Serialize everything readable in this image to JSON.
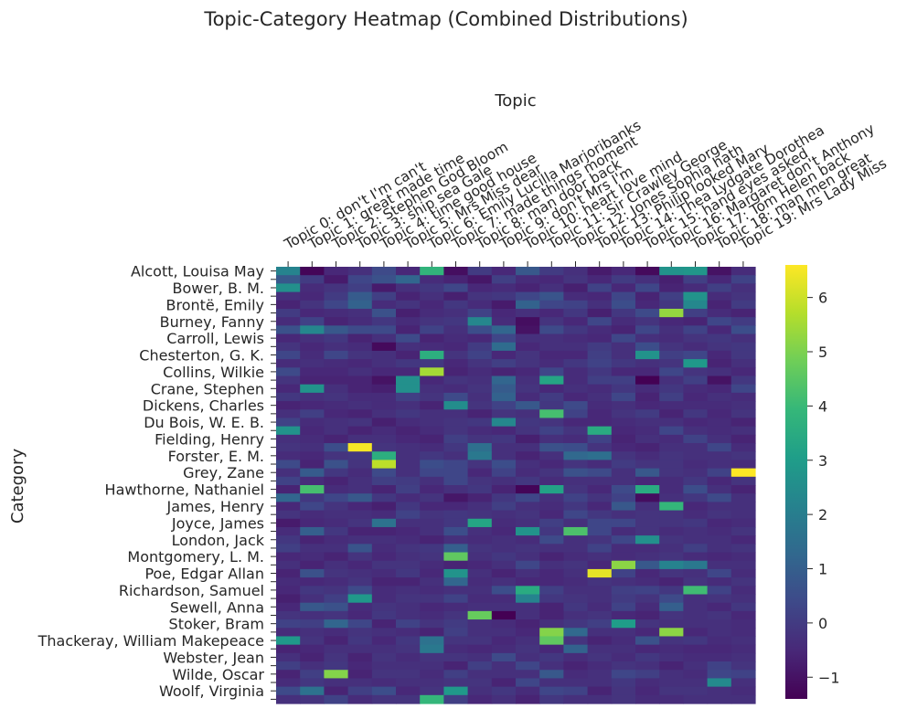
{
  "chart_data": {
    "type": "heatmap",
    "title": "Topic-Category Heatmap (Combined Distributions)",
    "xlabel": "Topic",
    "ylabel": "Category",
    "x_categories": [
      "Topic 0: don't I'm can't",
      "Topic 1: great made time",
      "Topic 2: Stephen God Bloom",
      "Topic 3: ship sea Gale",
      "Topic 4: time good house",
      "Topic 5: Mrs Miss dear",
      "Topic 6: Emily Lucilla Marjoribanks",
      "Topic 7: made things moment",
      "Topic 8: man door back",
      "Topic 9: don't Mrs I'm",
      "Topic 10: heart love mind",
      "Topic 11: Sir Crawley George",
      "Topic 12: Jones Sophia hath",
      "Topic 13: Philip looked Mary",
      "Topic 14: Thea Lydgate Dorothea",
      "Topic 15: hand eyes asked",
      "Topic 16: Margaret don't Anthony",
      "Topic 17: Tom Helen back",
      "Topic 18: man men great",
      "Topic 19: Mrs Lady Miss"
    ],
    "y_tick_labels": [
      "Alcott, Louisa May",
      "Bower, B. M.",
      "Brontë, Emily",
      "Burney, Fanny",
      "Carroll, Lewis",
      "Chesterton, G. K.",
      "Collins, Wilkie",
      "Crane, Stephen",
      "Dickens, Charles",
      "Du Bois, W. E. B.",
      "Fielding, Henry",
      "Forster, E. M.",
      "Grey, Zane",
      "Hawthorne, Nathaniel",
      "James, Henry",
      "Joyce, James",
      "London, Jack",
      "Montgomery, L. M.",
      "Poe, Edgar Allan",
      "Richardson, Samuel",
      "Sewell, Anna",
      "Stoker, Bram",
      "Thackeray, William Makepeace",
      "Webster, Jean",
      "Wilde, Oscar",
      "Woolf, Virginia"
    ],
    "n_rows": 52,
    "row_label_every": 2,
    "colormap": "viridis",
    "colorbar_ticks": [
      -1,
      0,
      1,
      2,
      3,
      4,
      5,
      6
    ],
    "value_range": [
      -1.4,
      6.6
    ],
    "values": [
      [
        2.2,
        -1.3,
        -0.5,
        -0.3,
        0.4,
        -0.5,
        3.8,
        -1.1,
        0,
        -0.5,
        0.8,
        0,
        -0.3,
        -0.8,
        -0.5,
        -1.2,
        2.7,
        2.8,
        -1,
        -0.4
      ],
      [
        0.8,
        0,
        -0.8,
        0.3,
        0.6,
        1.2,
        -0.4,
        -0.6,
        -0.9,
        0.1,
        -0.4,
        -0.5,
        -0.2,
        -0.5,
        0,
        -0.3,
        -0.7,
        0.1,
        -0.5,
        0.2
      ],
      [
        2.6,
        -0.4,
        -0.2,
        0.1,
        -0.8,
        -0.3,
        -0.1,
        0.3,
        -0.5,
        -0.4,
        -0.6,
        -0.3,
        -0.7,
        0.2,
        -0.5,
        0.3,
        -0.6,
        -0.4,
        0.1,
        -0.3
      ],
      [
        -0.3,
        -0.5,
        0,
        0.9,
        0.1,
        -0.6,
        -0.3,
        -0.7,
        -0.2,
        -0.1,
        0.3,
        0.7,
        -0.4,
        -0.5,
        0.3,
        -0.6,
        0.1,
        2.7,
        -0.4,
        -0.2
      ],
      [
        -0.6,
        -0.2,
        0.3,
        1.1,
        -0.4,
        -0.2,
        -0.5,
        -0.1,
        -0.4,
        -0.8,
        1.1,
        0.3,
        0.2,
        -0.3,
        0.5,
        -0.5,
        -0.1,
        2.3,
        -0.6,
        0
      ],
      [
        0,
        -0.5,
        -0.4,
        -0.3,
        0.6,
        -0.7,
        -0.4,
        -0.3,
        0.2,
        -0.5,
        -0.3,
        -0.5,
        -0.1,
        -0.7,
        -0.1,
        0.4,
        5.3,
        0.1,
        -0.4,
        -0.6
      ],
      [
        -0.4,
        0.2,
        -0.6,
        -0.4,
        -0.1,
        -0.4,
        -0.2,
        -0.1,
        2.3,
        -0.4,
        -1.1,
        -0.2,
        -0.5,
        0.3,
        -0.4,
        -0.2,
        -0.5,
        -0.6,
        0.3,
        0
      ],
      [
        0.6,
        2.3,
        0.8,
        0.4,
        0.4,
        -0.6,
        0.2,
        -0.3,
        0.5,
        1.2,
        -1,
        0.4,
        -0.1,
        -0.4,
        -0.6,
        0.3,
        -0.3,
        0.2,
        -0.5,
        0.5
      ],
      [
        -0.5,
        -0.3,
        -0.1,
        -0.6,
        -0.3,
        0.4,
        -0.6,
        -0.4,
        -0.5,
        0.3,
        -0.3,
        -0.3,
        -0.4,
        -0.5,
        0.3,
        -0.3,
        -0.4,
        -0.2,
        -0.1,
        -0.3
      ],
      [
        -0.2,
        -0.5,
        -0.3,
        -0.4,
        -1.2,
        -0.3,
        -0.4,
        -0.5,
        0,
        1.4,
        -0.5,
        -0.3,
        -0.3,
        0,
        -0.3,
        0.5,
        -0.2,
        -0.4,
        -0.2,
        -0.1
      ],
      [
        0.3,
        -0.4,
        0.3,
        -0.2,
        -0.3,
        -0.6,
        3.6,
        -0.2,
        0.2,
        -0.5,
        -0.2,
        -0.5,
        -0.5,
        0.1,
        -0.3,
        2.7,
        0.1,
        0.3,
        -0.5,
        -0.1
      ],
      [
        -0.4,
        -0.3,
        -0.4,
        -0.5,
        -0.3,
        -0.1,
        -0.1,
        -0.5,
        -0.2,
        0.1,
        -0.2,
        -0.4,
        -0.1,
        0.2,
        -0.1,
        -0.3,
        -0.2,
        2.9,
        -0.6,
        -0.3
      ],
      [
        0.4,
        -0.5,
        -0.5,
        -0.3,
        -0.5,
        -0.5,
        5.5,
        -0.6,
        -0.4,
        -0.6,
        -0.5,
        0.3,
        -0.4,
        -0.1,
        -0.5,
        -0.5,
        0.3,
        -0.2,
        -0.3,
        -0.5
      ],
      [
        -0.2,
        -0.6,
        -0.6,
        -0.6,
        -1,
        2.6,
        -0.5,
        -0.2,
        -0.3,
        1.2,
        -0.3,
        3.3,
        -0.4,
        0.1,
        0.1,
        -1.4,
        -0.3,
        0.1,
        -1,
        -0.1
      ],
      [
        -0.5,
        2.7,
        -0.3,
        -0.6,
        -0.7,
        2.6,
        -0.3,
        -0.4,
        -0.2,
        0.9,
        -0.2,
        -0.5,
        -0.3,
        -0.4,
        -0.1,
        -0.4,
        -0.1,
        -0.4,
        -0.5,
        0.3
      ],
      [
        -0.1,
        -0.3,
        -0.2,
        -0.4,
        -0.4,
        0.1,
        -0.2,
        0.4,
        -0.3,
        1.1,
        -0.4,
        0,
        -0.5,
        -0.3,
        0.3,
        -0.6,
        0.1,
        -0.5,
        -0.3,
        -0.4
      ],
      [
        -0.6,
        -0.5,
        -0.4,
        -0.3,
        -0.4,
        -0.3,
        -0.6,
        2.5,
        -0.2,
        0.2,
        0.8,
        -0.1,
        0.4,
        -0.4,
        -0.3,
        -0.5,
        -0.4,
        -0.4,
        -0.4,
        -0.3
      ],
      [
        -0.3,
        0.1,
        -0.5,
        -0.6,
        -0.3,
        -0.1,
        -0.3,
        -0.3,
        -0.6,
        -0.2,
        -0.3,
        4.2,
        0.2,
        -0.5,
        -0.2,
        0,
        -0.6,
        -0.1,
        -0.5,
        -0.2
      ],
      [
        0.2,
        -0.4,
        -0.3,
        -0.2,
        -0.7,
        -0.4,
        -0.3,
        -0.2,
        -0.1,
        2.3,
        -0.1,
        -0.2,
        -0.5,
        -0.5,
        -0.4,
        -0.3,
        -0.3,
        -0.5,
        -0.4,
        -0.6
      ],
      [
        2.7,
        -0.5,
        -0.3,
        -0.6,
        -0.4,
        -0.6,
        -0.4,
        -0.2,
        -0.4,
        -0.5,
        -0.2,
        0.2,
        -0.2,
        3.5,
        -0.5,
        -0.4,
        0.3,
        -0.3,
        -0.4,
        -0.3
      ],
      [
        -0.3,
        -0.4,
        -0.6,
        -0.3,
        -0.3,
        -0.5,
        -0.6,
        0.1,
        -0.2,
        -0.1,
        -0.7,
        -0.3,
        -0.4,
        0.2,
        -0.6,
        -0.3,
        -0.4,
        0.2,
        -0.3,
        -0.6
      ],
      [
        -0.2,
        -0.3,
        0.5,
        6.5,
        -0.2,
        -0.3,
        -0.4,
        -0.1,
        1.5,
        -0.3,
        -0.3,
        0.6,
        0.5,
        -0.2,
        -0.5,
        -0.6,
        -0.3,
        -0.3,
        0.3,
        -0.4
      ],
      [
        -0.4,
        -0.5,
        -0.2,
        -0.1,
        3.6,
        -0.3,
        -0.1,
        -0.3,
        1.8,
        -0.3,
        -0.6,
        -0.3,
        1.3,
        1.5,
        -0.2,
        -0.4,
        -0.2,
        -0.3,
        -0.3,
        -0.2
      ],
      [
        0.4,
        -0.6,
        0.6,
        -0.2,
        5.8,
        -0.3,
        0.5,
        0.3,
        -0.2,
        0.5,
        -0.3,
        -0.5,
        -0.2,
        -0.4,
        0,
        -0.2,
        -0.2,
        -0.4,
        -0.3,
        -0.4
      ],
      [
        -0.3,
        0.9,
        -0.1,
        -0.4,
        0.4,
        -0.3,
        0.3,
        0.3,
        -0.5,
        0.2,
        -0.4,
        -0.2,
        0.6,
        0.4,
        -0.3,
        0.8,
        -0.2,
        -0.3,
        0.2,
        6.6
      ],
      [
        0.2,
        -0.4,
        -0.6,
        -0.3,
        0.1,
        0,
        -0.3,
        0.3,
        -0.2,
        -0.3,
        -0.1,
        -0.4,
        -0.3,
        -0.3,
        -0.3,
        -0.5,
        -0.4,
        -0.1,
        -0.5,
        -0.2
      ],
      [
        -0.6,
        4.2,
        -0.4,
        -0.3,
        -0.6,
        0.1,
        -0.5,
        -0.3,
        -0.1,
        -0.6,
        -1.3,
        3.2,
        -0.2,
        -0.5,
        0.4,
        3.5,
        -0.4,
        0.5,
        -0.3,
        -0.6
      ],
      [
        1.2,
        -0.1,
        0.3,
        0.8,
        -0.1,
        -0.4,
        -0.2,
        -0.9,
        -0.6,
        -0.1,
        0.3,
        -0.3,
        0.2,
        -0.2,
        0.2,
        -1.1,
        -0.3,
        -0.1,
        0.4,
        -0.3
      ],
      [
        -0.5,
        0.3,
        -0.2,
        -0.5,
        -0.7,
        -0.1,
        -0.5,
        -0.5,
        -0.3,
        0.1,
        -0.3,
        -0.4,
        -0.1,
        -0.5,
        0.8,
        -0.3,
        3.9,
        -0.5,
        -0.3,
        -0.3
      ],
      [
        -0.2,
        -0.4,
        -0.3,
        -0.3,
        -0.4,
        0.2,
        -0.2,
        -0.1,
        -0.2,
        -0.3,
        -0.2,
        -0.5,
        0.3,
        -0.1,
        -0.3,
        -0.2,
        -0.2,
        -0.4,
        -0.2,
        -0.3
      ],
      [
        -0.8,
        -0.5,
        -0.4,
        -0.2,
        1.6,
        -0.3,
        -0.3,
        -0.1,
        3.3,
        -0.4,
        -0.3,
        0.1,
        -0.3,
        0.3,
        0.3,
        -0.2,
        -0.2,
        -0.1,
        -0.5,
        -0.4
      ],
      [
        -0.4,
        1,
        -0.1,
        -0.6,
        -0.6,
        -0.5,
        -0.3,
        0.5,
        -0.3,
        -0.5,
        2.7,
        -0.1,
        4.3,
        0.3,
        -0.4,
        -0.2,
        -0.4,
        -0.3,
        -0.4,
        -0.2
      ],
      [
        -0.1,
        -0.6,
        -0.4,
        -0.3,
        -0.3,
        -0.4,
        -0.6,
        -0.3,
        -0.4,
        -0.3,
        -0.4,
        0.4,
        -0.3,
        -0.2,
        0.3,
        2.6,
        -0.2,
        -0.3,
        -0.3,
        -0.5
      ],
      [
        0.1,
        -0.3,
        -0.3,
        0.7,
        -0.4,
        -0.2,
        -0.1,
        1,
        -0.2,
        -0.3,
        -0.2,
        -0.3,
        -0.3,
        0.2,
        -0.4,
        -0.4,
        -0.3,
        0.1,
        -0.3,
        -0.2
      ],
      [
        -0.5,
        -0.4,
        -0.6,
        -0.2,
        -0.5,
        -0.3,
        -0.2,
        4.6,
        -0.3,
        -0.1,
        -0.3,
        -0.6,
        -0.4,
        -0.3,
        -0.4,
        -0.3,
        -0.2,
        -0.4,
        -0.5,
        -0.4
      ],
      [
        -0.3,
        -0.6,
        -0.3,
        -0.5,
        -0.2,
        -0.2,
        -0.4,
        -0.6,
        -0.5,
        -0.3,
        0.3,
        -0.3,
        -0.2,
        -0.5,
        5.2,
        0.8,
        2.2,
        1.8,
        -0.3,
        -0.3
      ],
      [
        -0.6,
        0.6,
        -0.2,
        -0.3,
        -0.4,
        -0.1,
        -0.5,
        2.7,
        -0.3,
        -0.6,
        -0.3,
        -0.5,
        -0.3,
        6.3,
        0.2,
        -0.5,
        -0.2,
        -0.3,
        0.3,
        -0.4
      ],
      [
        -0.4,
        -0.5,
        -0.4,
        -0.2,
        -0.6,
        -0.6,
        -0.3,
        1.2,
        -0.4,
        -0.3,
        -0.5,
        -0.5,
        -0.4,
        -0.2,
        -0.3,
        -0.4,
        -0.6,
        -0.2,
        -0.4,
        -0.2
      ],
      [
        -0.5,
        -0.1,
        -0.2,
        0.4,
        -0.4,
        -0.3,
        -0.4,
        -0.3,
        -0.3,
        0.5,
        3.5,
        0.1,
        -0.3,
        -0.3,
        0.1,
        0.2,
        -0.1,
        4.1,
        0.2,
        -0.4
      ],
      [
        -0.7,
        -0.3,
        0.1,
        2.9,
        -0.4,
        -0.2,
        -0.2,
        0.2,
        -0.4,
        -0.4,
        2.2,
        -0.1,
        -0.2,
        -0.3,
        0,
        -0.2,
        0.4,
        -0.3,
        -0.2,
        -0.3
      ],
      [
        -0.5,
        0.8,
        0.6,
        -0.4,
        -0.2,
        -0.3,
        -0.5,
        -0.4,
        -0.3,
        -0.3,
        -0.3,
        -0.6,
        -0.1,
        -0.4,
        0.2,
        -0.4,
        1,
        -0.3,
        -0.5,
        -0.1
      ],
      [
        -0.2,
        -0.3,
        -0.2,
        -0.5,
        -0.1,
        -0.3,
        -0.4,
        -0.2,
        4.7,
        -1.4,
        -0.3,
        -0.6,
        -0.3,
        -0.2,
        -0.5,
        -0.6,
        -0.2,
        -0.3,
        -0.2,
        -0.5
      ],
      [
        0.2,
        0.1,
        1.2,
        0.3,
        -0.6,
        0.2,
        -0.2,
        0,
        -0.3,
        -0.4,
        -0.6,
        -0.3,
        -0.1,
        0.1,
        3,
        -0.2,
        -0.3,
        -0.3,
        -0.3,
        -0.4
      ],
      [
        -0.4,
        -0.3,
        -0.4,
        -0.2,
        -0.3,
        -0.4,
        -0.6,
        0.1,
        -0.3,
        -0.3,
        -0.5,
        5.1,
        1.3,
        -0.3,
        -0.3,
        -0.5,
        5.2,
        -0.5,
        -0.3,
        -0.4
      ],
      [
        2.9,
        -0.2,
        -0.6,
        -0.1,
        -0.5,
        -0.1,
        1.6,
        -0.2,
        -0.2,
        -0.5,
        -0.3,
        4.6,
        -0.2,
        -0.6,
        -0.4,
        0.6,
        -0.2,
        -0.1,
        -0.4,
        -0.3
      ],
      [
        -0.6,
        -0.5,
        -0.3,
        -0.3,
        -0.3,
        -0.2,
        1.8,
        -0.4,
        -0.5,
        -0.4,
        -0.2,
        -0.5,
        1.1,
        -0.3,
        -0.3,
        -0.5,
        -0.4,
        -0.5,
        -0.5,
        -0.4
      ],
      [
        -0.3,
        -0.6,
        -0.2,
        -0.6,
        -0.2,
        -0.4,
        -0.2,
        -0.2,
        -0.3,
        0.4,
        -0.3,
        -0.1,
        -0.4,
        -0.2,
        -0.4,
        -0.1,
        -0.3,
        -0.4,
        -0.4,
        -0.3
      ],
      [
        0.1,
        -0.3,
        -0.1,
        -0.5,
        -0.3,
        -0.3,
        -0.3,
        -0.6,
        0.1,
        -0.3,
        0.3,
        -0.3,
        -0.6,
        -0.4,
        -0.2,
        -0.3,
        -0.6,
        -0.3,
        0.2,
        -0.2
      ],
      [
        -0.6,
        0.1,
        5.1,
        -0.6,
        -0.2,
        -0.2,
        -0.4,
        0.1,
        -0.3,
        -0.3,
        -0.3,
        0.8,
        -0.4,
        -0.3,
        0.3,
        0.1,
        -0.3,
        -0.4,
        0.3,
        0.2
      ],
      [
        -0.4,
        -0.1,
        -0.3,
        -0.3,
        -0.4,
        -0.3,
        -0.3,
        -0.2,
        -0.2,
        -0.6,
        0.3,
        -0.3,
        -0.3,
        -0.3,
        -0.1,
        -0.4,
        -0.3,
        -0.3,
        2.4,
        -0.3
      ],
      [
        0.4,
        1.6,
        -0.6,
        0.1,
        0.5,
        -0.5,
        -0.2,
        2.9,
        -0.3,
        -0.1,
        -0.4,
        0.3,
        0.2,
        -0.6,
        -0.2,
        -0.5,
        -0.2,
        -0.2,
        -0.3,
        -0.4
      ],
      [
        -0.3,
        -0.2,
        0.2,
        -0.4,
        -0.2,
        -0.2,
        3.9,
        0.1,
        -0.5,
        -0.3,
        -0.6,
        -0.1,
        -0.3,
        -0.3,
        -0.2,
        -0.4,
        -0.4,
        -0.3,
        -0.3,
        -0.3
      ]
    ]
  }
}
